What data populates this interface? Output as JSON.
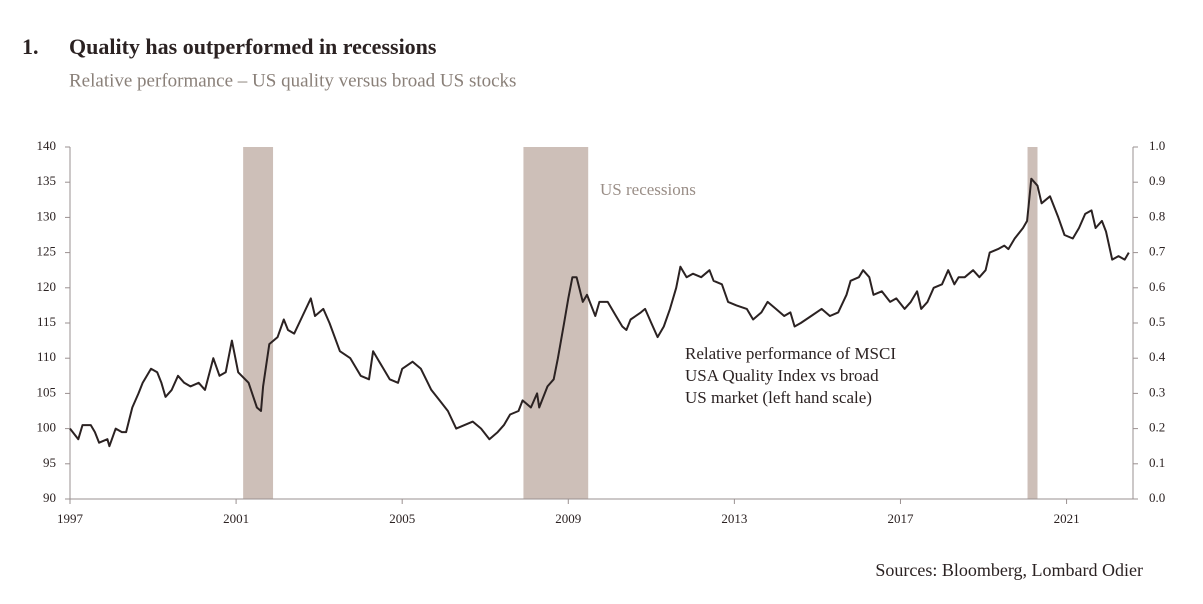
{
  "chart_data": {
    "type": "line",
    "number": "1.",
    "title": "Quality has outperformed in recessions",
    "subtitle": "Relative performance – US quality versus broad US stocks",
    "source": "Sources: Bloomberg, Lombard Odier",
    "recession_label": "US recessions",
    "series_annotation": [
      "Relative performance of MSCI",
      "USA Quality Index vs broad",
      "US market (left hand scale)"
    ],
    "recessions": [
      [
        2001.17,
        2001.89
      ],
      [
        2007.92,
        2009.48
      ],
      [
        2020.06,
        2020.3
      ]
    ],
    "recession_color": "#cdbfb8",
    "xlim": [
      1997,
      2022.6
    ],
    "xticks": [
      1997,
      2001,
      2005,
      2009,
      2013,
      2017,
      2021
    ],
    "ylim": [
      90,
      140
    ],
    "yticks": [
      90,
      95,
      100,
      105,
      110,
      115,
      120,
      125,
      130,
      135,
      140
    ],
    "y2lim": [
      0,
      1
    ],
    "y2ticks": [
      {
        "value": 0,
        "label": "0.0"
      },
      {
        "value": 0.1,
        "label": "0.1"
      },
      {
        "value": 0.2,
        "label": "0.2"
      },
      {
        "value": 0.3,
        "label": "0.3"
      },
      {
        "value": 0.4,
        "label": "0.4"
      },
      {
        "value": 0.5,
        "label": "0.5"
      },
      {
        "value": 0.6,
        "label": "0.6"
      },
      {
        "value": 0.7,
        "label": "0.7"
      },
      {
        "value": 0.8,
        "label": "0.8"
      },
      {
        "value": 0.9,
        "label": "0.9"
      },
      {
        "value": 1,
        "label": "1.0"
      }
    ],
    "x": [
      1997.0,
      1997.2,
      1997.3,
      1997.5,
      1997.6,
      1997.7,
      1997.9,
      1997.95,
      1998.1,
      1998.25,
      1998.35,
      1998.5,
      1998.65,
      1998.75,
      1998.95,
      1999.1,
      1999.2,
      1999.3,
      1999.45,
      1999.6,
      1999.75,
      1999.9,
      2000.1,
      2000.25,
      2000.45,
      2000.6,
      2000.75,
      2000.9,
      2001.05,
      2001.3,
      2001.5,
      2001.6,
      2001.65,
      2001.8,
      2002.0,
      2002.15,
      2002.25,
      2002.4,
      2002.6,
      2002.8,
      2002.9,
      2003.1,
      2003.25,
      2003.5,
      2003.75,
      2004.0,
      2004.2,
      2004.3,
      2004.45,
      2004.7,
      2004.9,
      2005.0,
      2005.25,
      2005.45,
      2005.7,
      2005.9,
      2006.1,
      2006.3,
      2006.5,
      2006.7,
      2006.9,
      2007.1,
      2007.3,
      2007.45,
      2007.6,
      2007.8,
      2007.9,
      2008.1,
      2008.25,
      2008.3,
      2008.5,
      2008.65,
      2008.75,
      2008.9,
      2009.0,
      2009.1,
      2009.2,
      2009.35,
      2009.45,
      2009.65,
      2009.75,
      2009.95,
      2010.15,
      2010.3,
      2010.4,
      2010.5,
      2010.75,
      2010.85,
      2011.0,
      2011.15,
      2011.3,
      2011.45,
      2011.6,
      2011.7,
      2011.85,
      2012.0,
      2012.2,
      2012.4,
      2012.5,
      2012.7,
      2012.85,
      2013.05,
      2013.3,
      2013.45,
      2013.65,
      2013.8,
      2014.0,
      2014.2,
      2014.35,
      2014.45,
      2014.6,
      2014.85,
      2015.1,
      2015.3,
      2015.5,
      2015.7,
      2015.8,
      2016.0,
      2016.1,
      2016.25,
      2016.35,
      2016.55,
      2016.75,
      2016.9,
      2017.1,
      2017.25,
      2017.4,
      2017.5,
      2017.65,
      2017.8,
      2018.0,
      2018.15,
      2018.3,
      2018.4,
      2018.55,
      2018.75,
      2018.9,
      2019.05,
      2019.15,
      2019.35,
      2019.5,
      2019.6,
      2019.75,
      2019.95,
      2020.05,
      2020.15,
      2020.3,
      2020.4,
      2020.6,
      2020.8,
      2020.95,
      2021.15,
      2021.3,
      2021.45,
      2021.6,
      2021.7,
      2021.85,
      2021.95,
      2022.1,
      2022.25,
      2022.4,
      2022.5
    ],
    "series": [
      {
        "name": "Relative performance",
        "color": "#2b2222",
        "values": [
          100,
          98.5,
          100.5,
          100.5,
          99.5,
          98,
          98.5,
          97.5,
          100,
          99.5,
          99.5,
          103,
          105,
          106.5,
          108.5,
          108,
          106.5,
          104.5,
          105.5,
          107.5,
          106.5,
          106,
          106.5,
          105.5,
          110,
          107.5,
          108,
          112.5,
          108,
          106.5,
          103,
          102.5,
          106,
          112,
          113,
          115.5,
          114,
          113.5,
          116,
          118.5,
          116,
          117,
          115,
          111,
          110,
          107.5,
          107,
          111,
          109.5,
          107,
          106.5,
          108.5,
          109.5,
          108.5,
          105.5,
          104,
          102.5,
          100,
          100.5,
          101,
          100,
          98.5,
          99.5,
          100.5,
          102,
          102.5,
          104,
          103,
          105,
          103,
          106,
          107,
          110,
          115,
          118.5,
          121.5,
          121.5,
          118,
          119,
          116,
          118,
          118,
          116,
          114.5,
          114,
          115.5,
          116.5,
          117,
          115,
          113,
          114.5,
          117,
          120,
          123,
          121.5,
          122,
          121.5,
          122.5,
          121,
          120.5,
          118,
          117.5,
          117,
          115.5,
          116.5,
          118,
          117,
          116,
          116.5,
          114.5,
          115,
          116,
          117,
          116,
          116.5,
          119,
          121,
          121.5,
          122.5,
          121.5,
          119,
          119.5,
          118,
          118.5,
          117,
          118,
          119.5,
          117,
          118,
          120,
          120.5,
          122.5,
          120.5,
          121.5,
          121.5,
          122.5,
          121.5,
          122.5,
          125,
          125.5,
          126,
          125.5,
          127,
          128.5,
          129.5,
          135.5,
          134.5,
          132,
          133,
          130,
          127.5,
          127,
          128.5,
          130.5,
          131,
          128.5,
          129.5,
          128,
          124,
          124.5,
          124,
          125
        ]
      }
    ]
  }
}
